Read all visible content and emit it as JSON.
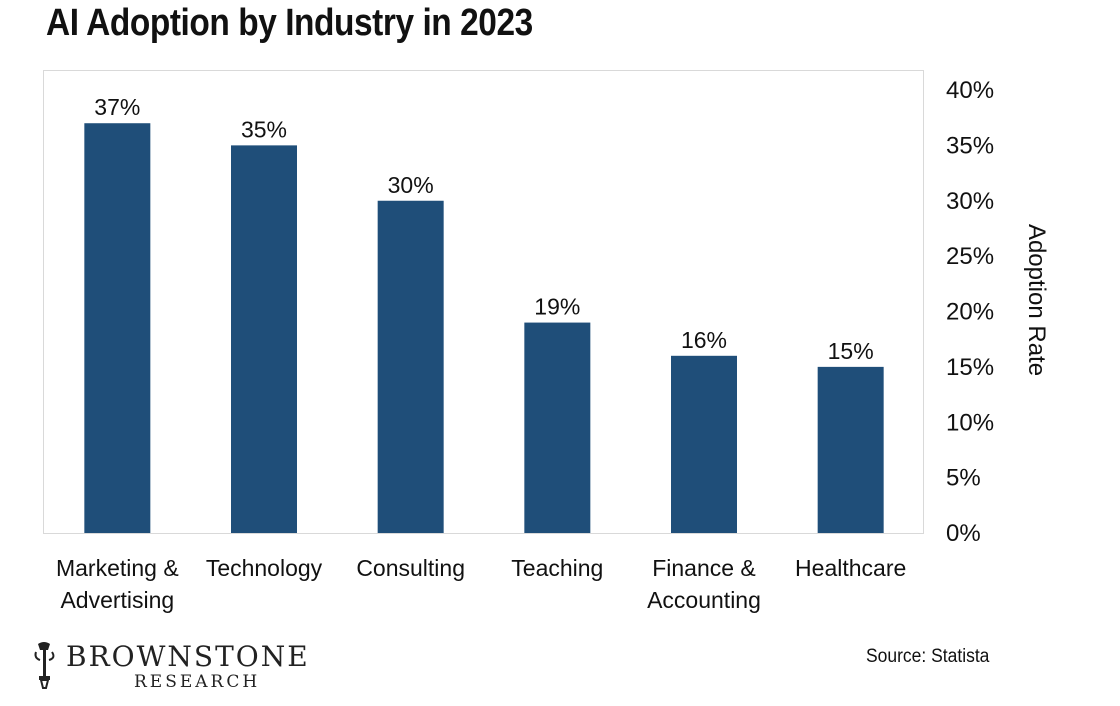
{
  "title": "AI Adoption by Industry in 2023",
  "chart_data": {
    "type": "bar",
    "title": "AI Adoption by Industry in 2023",
    "categories": [
      [
        "Marketing &",
        "Advertising"
      ],
      [
        "Technology"
      ],
      [
        "Consulting"
      ],
      [
        "Teaching"
      ],
      [
        "Finance &",
        "Accounting"
      ],
      [
        "Healthcare"
      ]
    ],
    "values": [
      37,
      35,
      30,
      19,
      16,
      15
    ],
    "value_labels": [
      "37%",
      "35%",
      "30%",
      "19%",
      "16%",
      "15%"
    ],
    "ylabel": "Adoption Rate",
    "xlabel": "",
    "ylim": [
      0,
      40
    ],
    "y_ticks": [
      "0%",
      "5%",
      "10%",
      "15%",
      "20%",
      "25%",
      "30%",
      "35%",
      "40%"
    ],
    "y_axis_side": "right",
    "grid": false,
    "bar_color": "#1f4e79"
  },
  "branding": {
    "logo_name": "BROWNSTONE",
    "logo_sub": "RESEARCH"
  },
  "source": "Source: Statista"
}
